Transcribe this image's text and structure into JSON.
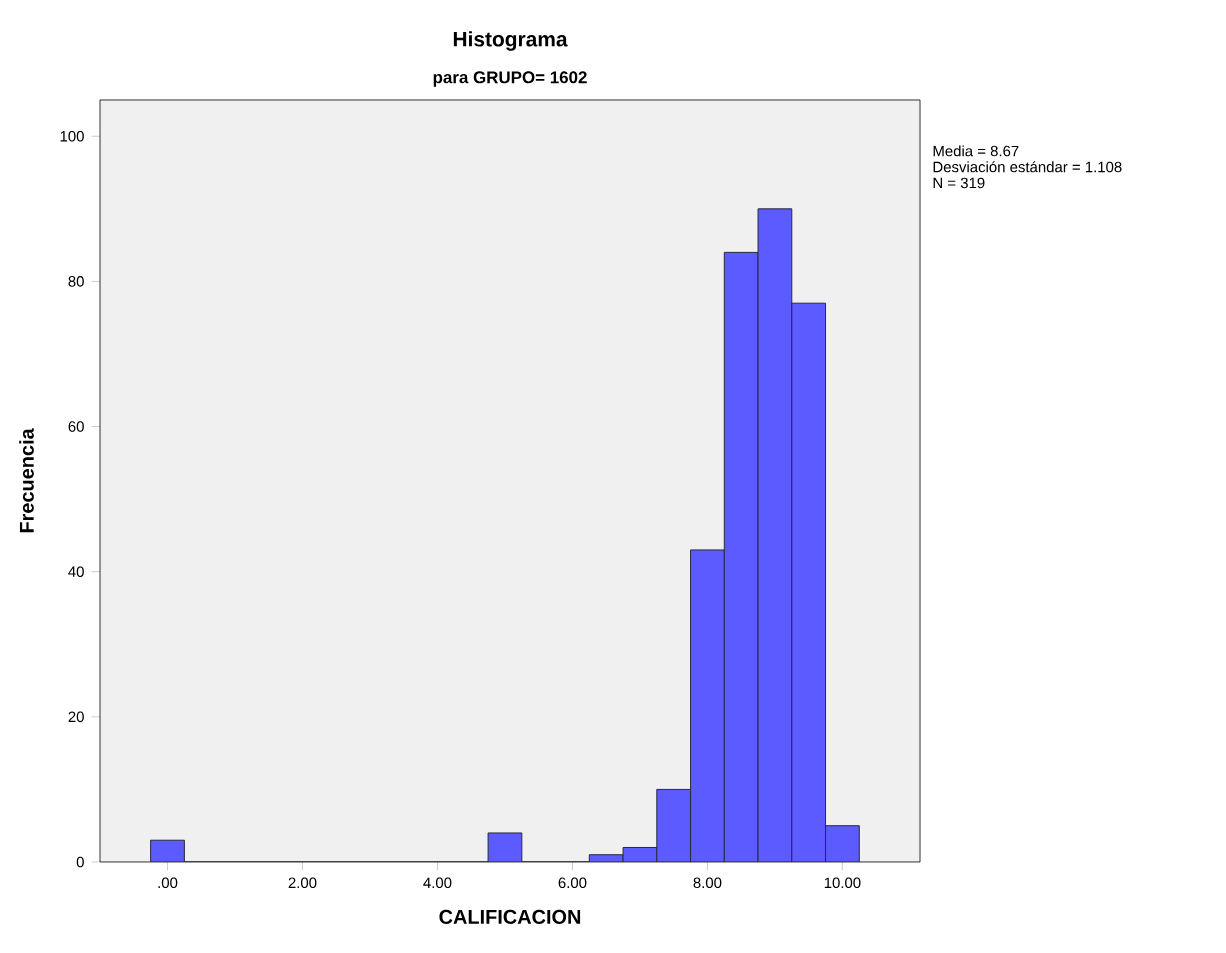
{
  "chart_data": {
    "type": "histogram",
    "title": "Histograma",
    "subtitle": "para GRUPO= 1602",
    "xlabel": "CALIFICACION",
    "ylabel": "Frecuencia",
    "annotations": [
      "Media = 8.67",
      "Desviación estándar = 1.108",
      "N = 319"
    ],
    "bins": [
      -0.25,
      0.25,
      0.75,
      1.25,
      1.75,
      2.25,
      2.75,
      3.25,
      3.75,
      4.25,
      4.75,
      5.25,
      5.75,
      6.25,
      6.75,
      7.25,
      7.75,
      8.25,
      8.75,
      9.25,
      9.75,
      10.25
    ],
    "values": [
      3,
      0,
      0,
      0,
      0,
      0,
      0,
      0,
      0,
      0,
      4,
      0,
      0,
      1,
      2,
      10,
      43,
      84,
      90,
      77,
      5
    ],
    "color": "#5b5bff",
    "xlim": [
      -1.0,
      11.15
    ],
    "ylim": [
      0,
      105
    ],
    "xticks": [
      {
        "value": 0,
        "label": ".00"
      },
      {
        "value": 2,
        "label": "2.00"
      },
      {
        "value": 4,
        "label": "4.00"
      },
      {
        "value": 6,
        "label": "6.00"
      },
      {
        "value": 8,
        "label": "8.00"
      },
      {
        "value": 10,
        "label": "10.00"
      }
    ],
    "yticks": [
      0,
      20,
      40,
      60,
      80,
      100
    ],
    "grid": false
  }
}
